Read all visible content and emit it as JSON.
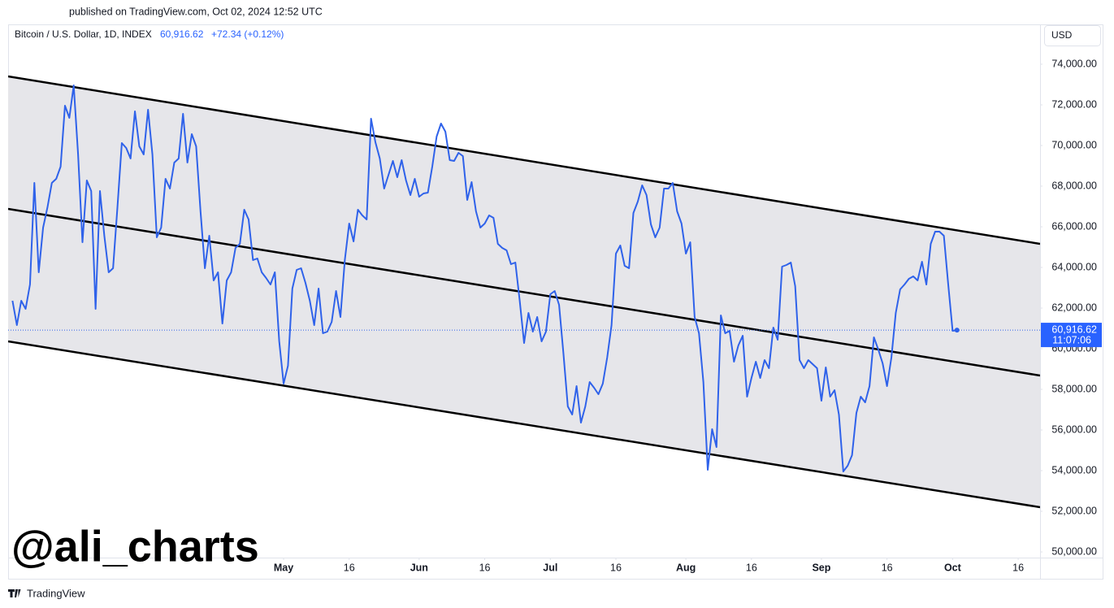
{
  "published": "published on TradingView.com, Oct 02, 2024 12:52 UTC",
  "watermark": "@ali_charts",
  "brand": "TradingView",
  "chart_data": {
    "type": "line",
    "symbol": "Bitcoin / U.S. Dollar, 1D, INDEX",
    "header_price": "60,916.62",
    "header_change": "+72.34 (+0.12%)",
    "currency": "USD",
    "last_price": {
      "value": 60916.62,
      "label": "60,916.62"
    },
    "countdown": "11:07:06",
    "grid": false,
    "xlim": [
      "2024-02-28",
      "2024-10-21"
    ],
    "ylim": [
      49720,
      75960
    ],
    "yticks": [
      {
        "value": 50000,
        "label": "50,000.00"
      },
      {
        "value": 52000,
        "label": "52,000.00"
      },
      {
        "value": 54000,
        "label": "54,000.00"
      },
      {
        "value": 56000,
        "label": "56,000.00"
      },
      {
        "value": 58000,
        "label": "58,000.00"
      },
      {
        "value": 60000,
        "label": "60,000.00"
      },
      {
        "value": 62000,
        "label": "62,000.00"
      },
      {
        "value": 64000,
        "label": "64,000.00"
      },
      {
        "value": 66000,
        "label": "66,000.00"
      },
      {
        "value": 68000,
        "label": "68,000.00"
      },
      {
        "value": 70000,
        "label": "70,000.00"
      },
      {
        "value": 72000,
        "label": "72,000.00"
      },
      {
        "value": 74000,
        "label": "74,000.00"
      }
    ],
    "xticks": [
      {
        "value": "2024-05-01",
        "label": "May"
      },
      {
        "value": "2024-05-16",
        "label": "16"
      },
      {
        "value": "2024-06-01",
        "label": "Jun"
      },
      {
        "value": "2024-06-16",
        "label": "16"
      },
      {
        "value": "2024-07-01",
        "label": "Jul"
      },
      {
        "value": "2024-07-16",
        "label": "16"
      },
      {
        "value": "2024-08-01",
        "label": "Aug"
      },
      {
        "value": "2024-08-16",
        "label": "16"
      },
      {
        "value": "2024-09-01",
        "label": "Sep"
      },
      {
        "value": "2024-09-16",
        "label": "16"
      },
      {
        "value": "2024-10-01",
        "label": "Oct"
      },
      {
        "value": "2024-10-16",
        "label": "16"
      }
    ],
    "channel": {
      "x": [
        "2024-02-28",
        "2024-10-21"
      ],
      "upper": [
        73400,
        65160
      ],
      "middle": [
        66880,
        58680
      ],
      "lower": [
        60360,
        52200
      ],
      "fill": "#e6e6ea",
      "color": "#000000"
    },
    "series": [
      {
        "color": "#2f62ea",
        "x": [
          "2024-02-29",
          "2024-03-01",
          "2024-03-02",
          "2024-03-03",
          "2024-03-04",
          "2024-03-05",
          "2024-03-06",
          "2024-03-07",
          "2024-03-08",
          "2024-03-09",
          "2024-03-10",
          "2024-03-11",
          "2024-03-12",
          "2024-03-13",
          "2024-03-14",
          "2024-03-15",
          "2024-03-16",
          "2024-03-17",
          "2024-03-18",
          "2024-03-19",
          "2024-03-20",
          "2024-03-21",
          "2024-03-22",
          "2024-03-23",
          "2024-03-24",
          "2024-03-25",
          "2024-03-26",
          "2024-03-27",
          "2024-03-28",
          "2024-03-29",
          "2024-03-30",
          "2024-03-31",
          "2024-04-01",
          "2024-04-02",
          "2024-04-03",
          "2024-04-04",
          "2024-04-05",
          "2024-04-06",
          "2024-04-07",
          "2024-04-08",
          "2024-04-09",
          "2024-04-10",
          "2024-04-11",
          "2024-04-12",
          "2024-04-13",
          "2024-04-14",
          "2024-04-15",
          "2024-04-16",
          "2024-04-17",
          "2024-04-18",
          "2024-04-19",
          "2024-04-20",
          "2024-04-21",
          "2024-04-22",
          "2024-04-23",
          "2024-04-24",
          "2024-04-25",
          "2024-04-26",
          "2024-04-27",
          "2024-04-28",
          "2024-04-29",
          "2024-04-30",
          "2024-05-01",
          "2024-05-02",
          "2024-05-03",
          "2024-05-04",
          "2024-05-05",
          "2024-05-06",
          "2024-05-07",
          "2024-05-08",
          "2024-05-09",
          "2024-05-10",
          "2024-05-11",
          "2024-05-12",
          "2024-05-13",
          "2024-05-14",
          "2024-05-15",
          "2024-05-16",
          "2024-05-17",
          "2024-05-18",
          "2024-05-19",
          "2024-05-20",
          "2024-05-21",
          "2024-05-22",
          "2024-05-23",
          "2024-05-24",
          "2024-05-25",
          "2024-05-26",
          "2024-05-27",
          "2024-05-28",
          "2024-05-29",
          "2024-05-30",
          "2024-05-31",
          "2024-06-01",
          "2024-06-02",
          "2024-06-03",
          "2024-06-04",
          "2024-06-05",
          "2024-06-06",
          "2024-06-07",
          "2024-06-08",
          "2024-06-09",
          "2024-06-10",
          "2024-06-11",
          "2024-06-12",
          "2024-06-13",
          "2024-06-14",
          "2024-06-15",
          "2024-06-16",
          "2024-06-17",
          "2024-06-18",
          "2024-06-19",
          "2024-06-20",
          "2024-06-21",
          "2024-06-22",
          "2024-06-23",
          "2024-06-24",
          "2024-06-25",
          "2024-06-26",
          "2024-06-27",
          "2024-06-28",
          "2024-06-29",
          "2024-06-30",
          "2024-07-01",
          "2024-07-02",
          "2024-07-03",
          "2024-07-04",
          "2024-07-05",
          "2024-07-06",
          "2024-07-07",
          "2024-07-08",
          "2024-07-09",
          "2024-07-10",
          "2024-07-11",
          "2024-07-12",
          "2024-07-13",
          "2024-07-14",
          "2024-07-15",
          "2024-07-16",
          "2024-07-17",
          "2024-07-18",
          "2024-07-19",
          "2024-07-20",
          "2024-07-21",
          "2024-07-22",
          "2024-07-23",
          "2024-07-24",
          "2024-07-25",
          "2024-07-26",
          "2024-07-27",
          "2024-07-28",
          "2024-07-29",
          "2024-07-30",
          "2024-07-31",
          "2024-08-01",
          "2024-08-02",
          "2024-08-03",
          "2024-08-04",
          "2024-08-05",
          "2024-08-06",
          "2024-08-07",
          "2024-08-08",
          "2024-08-09",
          "2024-08-10",
          "2024-08-11",
          "2024-08-12",
          "2024-08-13",
          "2024-08-14",
          "2024-08-15",
          "2024-08-16",
          "2024-08-17",
          "2024-08-18",
          "2024-08-19",
          "2024-08-20",
          "2024-08-21",
          "2024-08-22",
          "2024-08-23",
          "2024-08-24",
          "2024-08-25",
          "2024-08-26",
          "2024-08-27",
          "2024-08-28",
          "2024-08-29",
          "2024-08-30",
          "2024-08-31",
          "2024-09-01",
          "2024-09-02",
          "2024-09-03",
          "2024-09-04",
          "2024-09-05",
          "2024-09-06",
          "2024-09-07",
          "2024-09-08",
          "2024-09-09",
          "2024-09-10",
          "2024-09-11",
          "2024-09-12",
          "2024-09-13",
          "2024-09-14",
          "2024-09-15",
          "2024-09-16",
          "2024-09-17",
          "2024-09-18",
          "2024-09-19",
          "2024-09-20",
          "2024-09-21",
          "2024-09-22",
          "2024-09-23",
          "2024-09-24",
          "2024-09-25",
          "2024-09-26",
          "2024-09-27",
          "2024-09-28",
          "2024-09-29",
          "2024-09-30",
          "2024-10-01",
          "2024-10-02"
        ],
        "values": [
          62360,
          61160,
          62360,
          61960,
          63160,
          68160,
          63760,
          65960,
          66960,
          68160,
          68360,
          68960,
          71960,
          71360,
          72960,
          69560,
          65240,
          68280,
          67760,
          61960,
          67760,
          65560,
          63760,
          63960,
          66960,
          70120,
          69880,
          69360,
          71680,
          69960,
          69560,
          71760,
          69560,
          65480,
          65960,
          68360,
          67880,
          69160,
          69360,
          71560,
          69160,
          70560,
          69960,
          66760,
          63960,
          65560,
          63360,
          63760,
          61240,
          63360,
          63760,
          64960,
          65160,
          66840,
          66360,
          64360,
          64440,
          63760,
          63480,
          63160,
          63760,
          60360,
          58280,
          59160,
          62960,
          63880,
          63960,
          63240,
          62360,
          61160,
          62960,
          60760,
          60840,
          61320,
          62840,
          61560,
          64360,
          66160,
          65280,
          66840,
          66560,
          66360,
          71320,
          70160,
          69360,
          67880,
          68560,
          69240,
          68440,
          69280,
          68280,
          67560,
          68360,
          67480,
          67640,
          67680,
          68960,
          70440,
          71080,
          70680,
          69280,
          69240,
          69640,
          69480,
          67320,
          68200,
          66760,
          65960,
          66160,
          66560,
          66440,
          65160,
          64960,
          64840,
          64160,
          64240,
          62360,
          60280,
          61760,
          60840,
          61560,
          60360,
          60840,
          62680,
          62840,
          62160,
          59760,
          57160,
          56760,
          58160,
          56360,
          57160,
          58360,
          58080,
          57760,
          58280,
          59560,
          61160,
          64680,
          65080,
          64080,
          63960,
          66680,
          67240,
          68040,
          67560,
          66120,
          65480,
          65960,
          67880,
          67880,
          68160,
          66760,
          66160,
          64680,
          65240,
          61560,
          60760,
          58360,
          54040,
          56040,
          55160,
          61640,
          60760,
          60880,
          59360,
          60160,
          60640,
          57640,
          58560,
          59360,
          58560,
          59440,
          59040,
          61040,
          60440,
          64040,
          64120,
          64240,
          63080,
          59440,
          59040,
          59440,
          59240,
          59040,
          57440,
          59080,
          57640,
          57960,
          56760,
          53960,
          54240,
          54760,
          56840,
          57640,
          57360,
          58160,
          60560,
          59960,
          59280,
          58160,
          59560,
          61760,
          62920,
          63160,
          63440,
          63560,
          63360,
          64280,
          63160,
          65160,
          65760,
          65760,
          65560,
          63160,
          60880,
          60916.62
        ]
      }
    ]
  }
}
